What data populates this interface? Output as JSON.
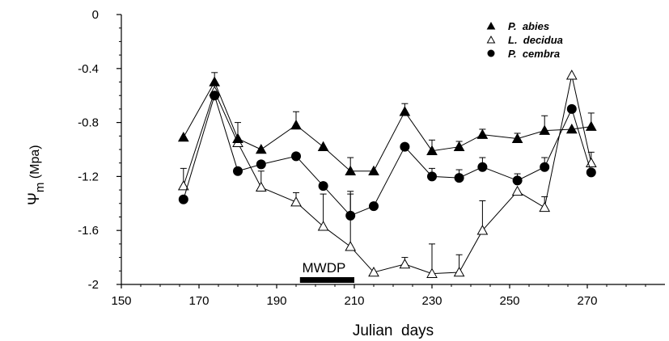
{
  "chart_data": {
    "type": "line",
    "xlabel": "Julian  days",
    "ylabel_main": "Ψ",
    "ylabel_sub": "m",
    "ylabel_unit": " (Mpa)",
    "xlim": [
      150,
      290
    ],
    "ylim": [
      -2,
      0
    ],
    "xticks": [
      150,
      170,
      190,
      210,
      230,
      250,
      270
    ],
    "xtick_labels": [
      "150",
      "170",
      "190",
      "210",
      "230",
      "250",
      "270"
    ],
    "yticks": [
      0,
      -0.4,
      -0.8,
      -1.2,
      -1.6,
      -2
    ],
    "ytick_labels": [
      "0",
      "-0.4",
      "-0.8",
      "-1.2",
      "-1.6",
      "-2"
    ],
    "grid": false,
    "legend_position": "top-right",
    "series": [
      {
        "name": "P.  abies",
        "marker": "triangle-filled",
        "x": [
          166,
          174,
          180,
          186,
          195,
          202,
          209,
          215,
          223,
          230,
          237,
          243,
          252,
          259,
          266,
          271
        ],
        "y": [
          -0.91,
          -0.5,
          -0.92,
          -1.0,
          -0.82,
          -0.98,
          -1.16,
          -1.16,
          -0.72,
          -1.01,
          -0.98,
          -0.89,
          -0.92,
          -0.86,
          -0.85,
          -0.83
        ],
        "err": [
          0,
          0.07,
          0.12,
          0,
          0.1,
          0,
          0.1,
          0,
          0.06,
          0.08,
          0.04,
          0.04,
          0.04,
          0.11,
          0,
          0.1
        ]
      },
      {
        "name": "L.  decidua",
        "marker": "triangle-open",
        "x": [
          166,
          174,
          180,
          186,
          195,
          202,
          209,
          215,
          223,
          230,
          237,
          243,
          252,
          259,
          266,
          271
        ],
        "y": [
          -1.27,
          -0.57,
          -0.95,
          -1.28,
          -1.39,
          -1.57,
          -1.72,
          -1.91,
          -1.85,
          -1.92,
          -1.91,
          -1.6,
          -1.31,
          -1.43,
          -0.45,
          -1.1
        ],
        "err": [
          0.13,
          0,
          0,
          0.12,
          0.07,
          0.24,
          0.41,
          0,
          0.05,
          0.22,
          0.13,
          0.22,
          0,
          0.08,
          0,
          0.08
        ]
      },
      {
        "name": "P.  cembra",
        "marker": "circle-filled",
        "x": [
          166,
          174,
          180,
          186,
          195,
          202,
          209,
          215,
          223,
          230,
          237,
          243,
          252,
          259,
          266,
          271
        ],
        "y": [
          -1.37,
          -0.6,
          -1.16,
          -1.11,
          -1.05,
          -1.27,
          -1.49,
          -1.42,
          -0.98,
          -1.2,
          -1.21,
          -1.13,
          -1.23,
          -1.13,
          -0.7,
          -1.17
        ],
        "err": [
          0,
          0,
          0,
          0,
          0,
          0,
          0.16,
          0,
          0,
          0.06,
          0.06,
          0.07,
          0.05,
          0.07,
          0,
          0
        ]
      }
    ],
    "annotation": {
      "label": "MWDP",
      "x_start": 196,
      "x_end": 210
    }
  }
}
